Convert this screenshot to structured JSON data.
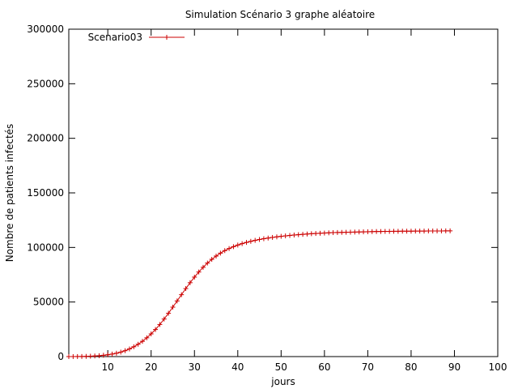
{
  "chart_data": {
    "type": "line",
    "title": "Simulation Scénario 3 graphe aléatoire",
    "xlabel": "jours",
    "ylabel": "Nombre de patients infectés",
    "xlim": [
      1,
      100
    ],
    "ylim": [
      0,
      300000
    ],
    "xticks": [
      10,
      20,
      30,
      40,
      50,
      60,
      70,
      80,
      90,
      100
    ],
    "yticks": [
      0,
      50000,
      100000,
      150000,
      200000,
      250000,
      300000
    ],
    "grid": false,
    "legend_position": "top-left",
    "series": [
      {
        "name": "Scenario03",
        "color": "#cc0000",
        "marker": "plus",
        "x": [
          1,
          2,
          3,
          4,
          5,
          6,
          7,
          8,
          9,
          10,
          11,
          12,
          13,
          14,
          15,
          16,
          17,
          18,
          19,
          20,
          21,
          22,
          23,
          24,
          25,
          26,
          27,
          28,
          29,
          30,
          31,
          32,
          33,
          34,
          35,
          36,
          37,
          38,
          39,
          40,
          41,
          42,
          43,
          44,
          45,
          46,
          47,
          48,
          49,
          50,
          51,
          52,
          53,
          54,
          55,
          56,
          57,
          58,
          59,
          60,
          61,
          62,
          63,
          64,
          65,
          66,
          67,
          68,
          69,
          70,
          71,
          72,
          73,
          74,
          75,
          76,
          77,
          78,
          79,
          80,
          81,
          82,
          83,
          84,
          85,
          86,
          87,
          88,
          89
        ],
        "y": [
          0,
          20,
          50,
          100,
          200,
          350,
          550,
          800,
          1200,
          1700,
          2300,
          3100,
          4100,
          5400,
          7000,
          9000,
          11300,
          14000,
          17200,
          20800,
          24800,
          29400,
          34400,
          39700,
          45300,
          51000,
          56700,
          62300,
          67700,
          72800,
          77500,
          81800,
          85700,
          89100,
          92100,
          94800,
          97100,
          99000,
          100700,
          102200,
          103500,
          104600,
          105600,
          106500,
          107300,
          108000,
          108600,
          109200,
          109700,
          110200,
          110600,
          111000,
          111400,
          111700,
          112000,
          112300,
          112600,
          112800,
          113000,
          113200,
          113400,
          113600,
          113700,
          113800,
          113900,
          114000,
          114100,
          114200,
          114300,
          114400,
          114500,
          114600,
          114600,
          114700,
          114700,
          114800,
          114800,
          114900,
          114900,
          114900,
          115000,
          115000,
          115000,
          115100,
          115100,
          115100,
          115100,
          115200,
          115200
        ]
      }
    ]
  }
}
